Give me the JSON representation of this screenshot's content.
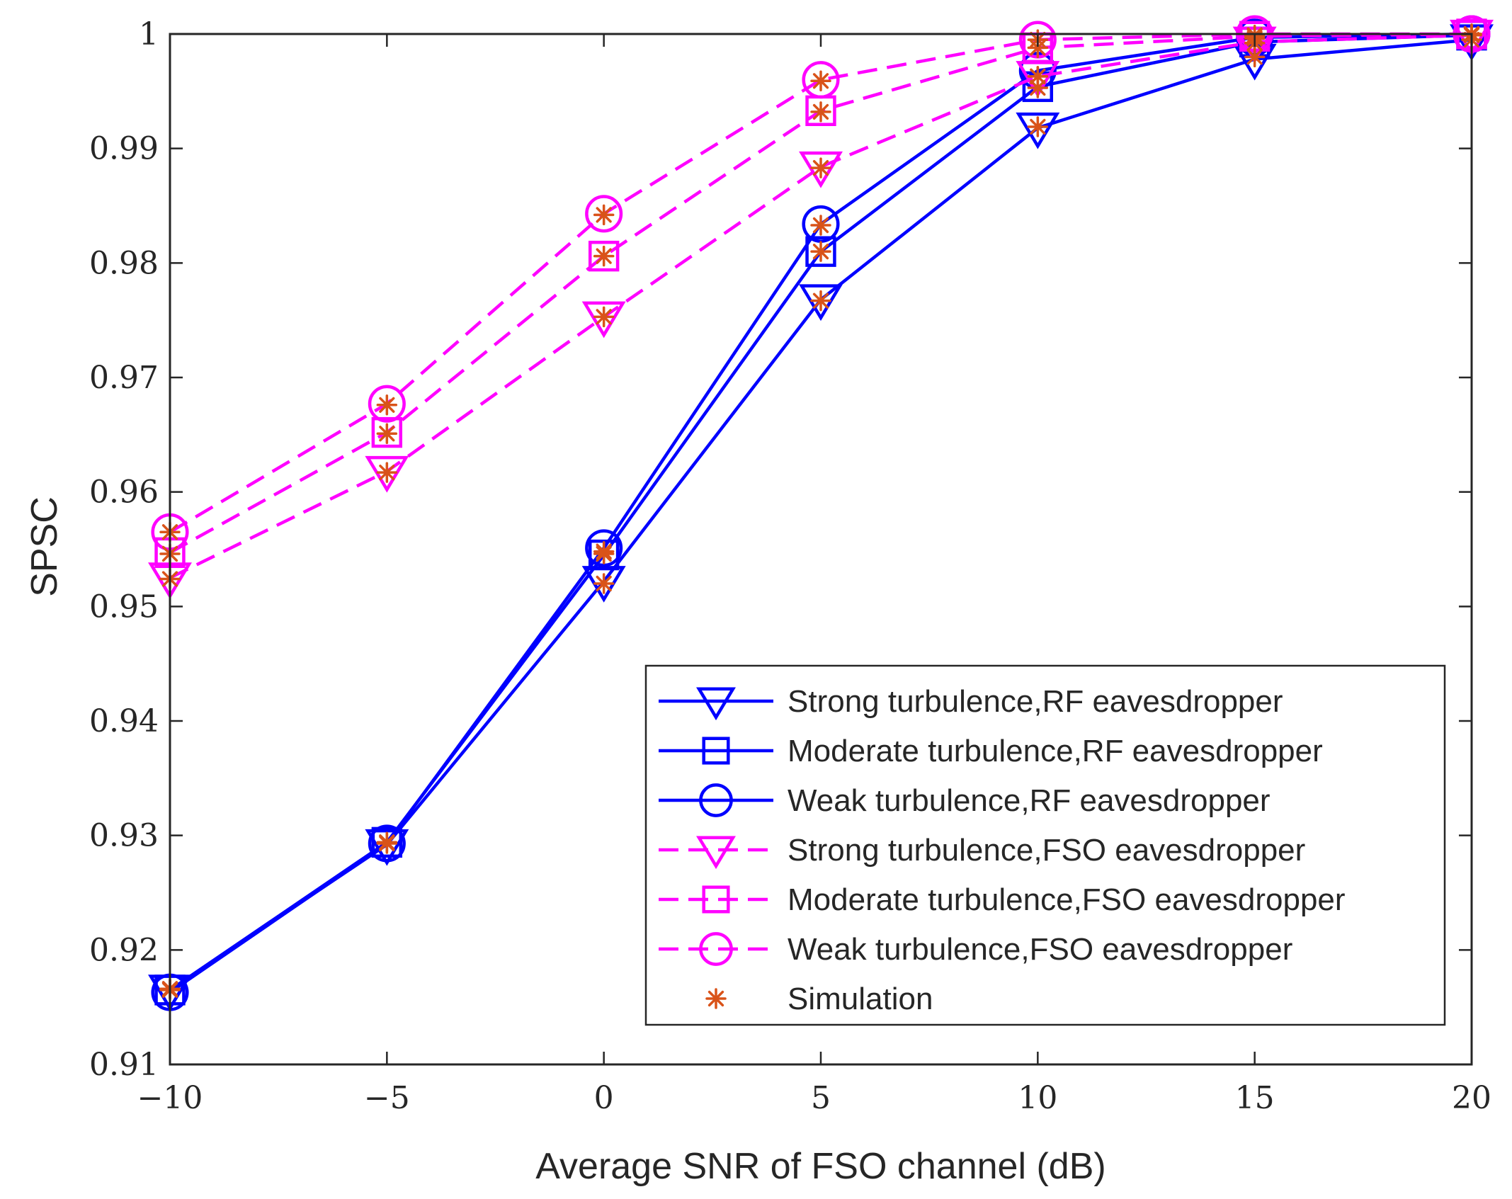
{
  "chart_data": {
    "type": "line",
    "title": "",
    "xlabel": "Average SNR of FSO channel (dB)",
    "ylabel": "SPSC",
    "xlim": [
      -10,
      20
    ],
    "ylim": [
      0.91,
      1
    ],
    "xticks": [
      -10,
      -5,
      0,
      5,
      10,
      15,
      20
    ],
    "xtick_labels": [
      "−10",
      "−5",
      "0",
      "5",
      "10",
      "15",
      "20"
    ],
    "yticks": [
      0.91,
      0.92,
      0.93,
      0.94,
      0.95,
      0.96,
      0.97,
      0.98,
      0.99,
      1
    ],
    "ytick_labels": [
      "0.91",
      "0.92",
      "0.93",
      "0.94",
      "0.95",
      "0.96",
      "0.97",
      "0.98",
      "0.99",
      "1"
    ],
    "grid": false,
    "legend_position": "bottom-right",
    "x": [
      -10,
      -5,
      0,
      5,
      10,
      15,
      20
    ],
    "series": [
      {
        "name": "Strong turbulence,RF eavesdropper",
        "color": "#0000ff",
        "dash": "solid",
        "marker": "triangle-down",
        "values": [
          0.9165,
          0.9292,
          0.9522,
          0.9768,
          0.9918,
          0.9978,
          0.9995
        ]
      },
      {
        "name": "Moderate turbulence,RF eavesdropper",
        "color": "#0000ff",
        "dash": "solid",
        "marker": "square",
        "values": [
          0.9165,
          0.9294,
          0.9545,
          0.981,
          0.9954,
          0.9993,
          0.9999
        ]
      },
      {
        "name": "Weak turbulence,RF eavesdropper",
        "color": "#0000ff",
        "dash": "solid",
        "marker": "circle",
        "values": [
          0.9163,
          0.9293,
          0.9551,
          0.9834,
          0.9968,
          0.9997,
          1.0
        ]
      },
      {
        "name": "Strong turbulence,FSO eavesdropper",
        "color": "#ff00ff",
        "dash": "dashed",
        "marker": "triangle-down",
        "values": [
          0.9525,
          0.9618,
          0.9753,
          0.9884,
          0.9963,
          0.9993,
          0.9999
        ]
      },
      {
        "name": "Moderate turbulence,FSO eavesdropper",
        "color": "#ff00ff",
        "dash": "dashed",
        "marker": "square",
        "values": [
          0.9547,
          0.9652,
          0.9806,
          0.9933,
          0.9988,
          0.9998,
          1.0
        ]
      },
      {
        "name": "Weak turbulence,FSO eavesdropper",
        "color": "#ff00ff",
        "dash": "dashed",
        "marker": "circle",
        "values": [
          0.9565,
          0.9677,
          0.9843,
          0.996,
          0.9995,
          1.0,
          1.0
        ]
      }
    ],
    "simulation": {
      "name": "Simulation",
      "color": "#d95319",
      "marker": "asterisk",
      "values": [
        [
          0.9165,
          0.9293,
          0.952,
          0.9767,
          0.9919,
          0.998,
          0.9995
        ],
        [
          0.9166,
          0.9294,
          0.9546,
          0.981,
          0.9953,
          0.9992,
          0.9999
        ],
        [
          0.9166,
          0.9294,
          0.9548,
          0.9833,
          0.9963,
          0.9996,
          1.0
        ],
        [
          0.9524,
          0.9617,
          0.9753,
          0.9883,
          0.9963,
          0.9992,
          0.9999
        ],
        [
          0.9546,
          0.9651,
          0.9806,
          0.9932,
          0.9988,
          0.9998,
          1.0
        ],
        [
          0.9565,
          0.9676,
          0.9842,
          0.9959,
          0.9995,
          0.9999,
          1.0
        ]
      ]
    }
  }
}
